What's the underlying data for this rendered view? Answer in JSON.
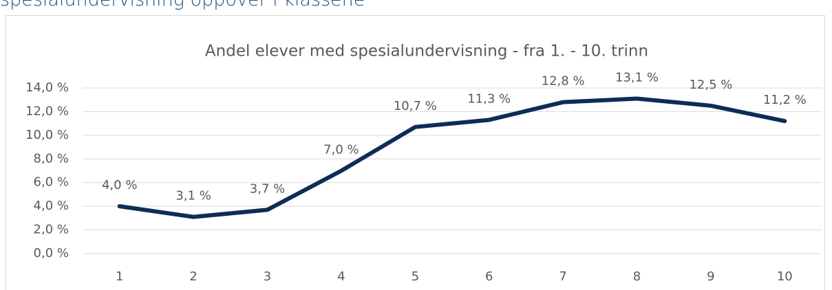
{
  "heading": "spesialundervisning oppover i klassene",
  "chart_data": {
    "type": "line",
    "title": "Andel elever med spesialundervisning - fra 1. - 10. trinn",
    "categories": [
      "1",
      "2",
      "3",
      "4",
      "5",
      "6",
      "7",
      "8",
      "9",
      "10"
    ],
    "series": [
      {
        "name": "Andel elever med spesialundervisning",
        "color": "#0d2d57",
        "values": [
          4.0,
          3.1,
          3.7,
          7.0,
          10.7,
          11.3,
          12.8,
          13.1,
          12.5,
          11.2
        ],
        "value_labels": [
          "4,0 %",
          "3,1 %",
          "3,7 %",
          "7,0 %",
          "10,7 %",
          "11,3 %",
          "12,8 %",
          "13,1 %",
          "12,5 %",
          "11,2 %"
        ]
      }
    ],
    "ylim": [
      0,
      14
    ],
    "yticks": [
      {
        "value": 0,
        "label": "0,0 %"
      },
      {
        "value": 2,
        "label": "2,0 %"
      },
      {
        "value": 4,
        "label": "4,0 %"
      },
      {
        "value": 6,
        "label": "6,0 %"
      },
      {
        "value": 8,
        "label": "8,0 %"
      },
      {
        "value": 10,
        "label": "10,0 %"
      },
      {
        "value": 12,
        "label": "12,0 %"
      },
      {
        "value": 14,
        "label": "14,0 %"
      }
    ],
    "grid": true
  }
}
